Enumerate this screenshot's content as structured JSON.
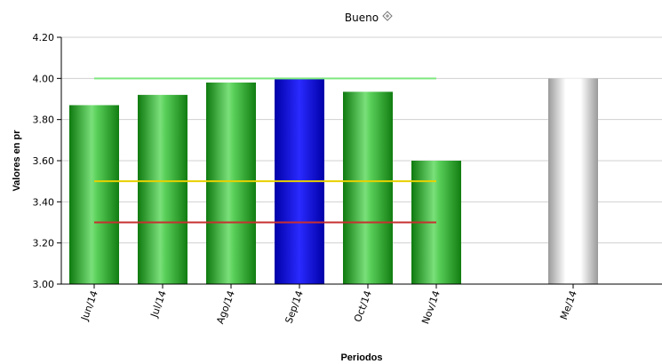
{
  "chart_data": {
    "type": "bar",
    "title": "Bueno",
    "title_icon": "diamond-arrows-icon",
    "xlabel": "Periodos",
    "ylabel": "Valores en pr",
    "ylim": [
      3.0,
      4.2
    ],
    "yticks": [
      "3.00",
      "3.20",
      "3.40",
      "3.60",
      "3.80",
      "4.00",
      "4.20"
    ],
    "ytick_values": [
      3.0,
      3.2,
      3.4,
      3.6,
      3.8,
      4.0,
      4.2
    ],
    "grid": true,
    "categories": [
      "Jun/14",
      "Jul/14",
      "Ago/14",
      "Sep/14",
      "Oct/14",
      "Nov/14",
      "Me/14"
    ],
    "values": [
      3.87,
      3.92,
      3.98,
      4.0,
      3.935,
      3.6,
      4.0
    ],
    "bar_colors": [
      "#1faa1f",
      "#1faa1f",
      "#1faa1f",
      "#1010d0",
      "#1faa1f",
      "#1faa1f",
      "#bdbdbd"
    ],
    "reference_lines": [
      {
        "value": 4.0,
        "color": "#7de87d",
        "from_category": 0,
        "to_category": 5
      },
      {
        "value": 3.5,
        "color": "#e8d000",
        "from_category": 0,
        "to_category": 5
      },
      {
        "value": 3.3,
        "color": "#c83030",
        "from_category": 0,
        "to_category": 5
      }
    ]
  }
}
